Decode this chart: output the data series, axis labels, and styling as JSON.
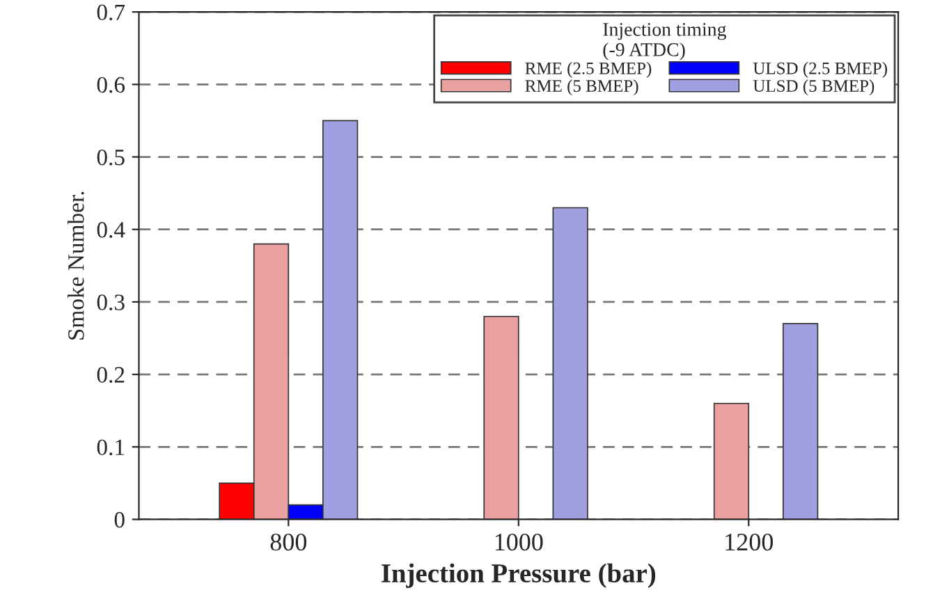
{
  "chart_data": {
    "type": "bar",
    "xlabel": "Injection Pressure (bar)",
    "ylabel": "Smoke Number.",
    "legend_title": "Injection timing\n(-9 ATDC)",
    "categories": [
      "800",
      "1000",
      "1200"
    ],
    "series": [
      {
        "name": "RME (2.5 BMEP)",
        "color": "#ff0000",
        "values": [
          0.05,
          null,
          null
        ]
      },
      {
        "name": "RME (5 BMEP)",
        "color": "#e8a0a0",
        "values": [
          0.38,
          0.28,
          0.16
        ]
      },
      {
        "name": "ULSD (2.5 BMEP)",
        "color": "#0000ff",
        "values": [
          0.02,
          null,
          null
        ]
      },
      {
        "name": "ULSD (5 BMEP)",
        "color": "#a0a0e0",
        "values": [
          0.55,
          0.43,
          0.27
        ]
      }
    ],
    "ylim": [
      0,
      0.7
    ],
    "yticks": [
      0,
      0.1,
      0.2,
      0.3,
      0.4,
      0.5,
      0.6,
      0.7
    ],
    "grid": "y",
    "legend": "top right"
  }
}
